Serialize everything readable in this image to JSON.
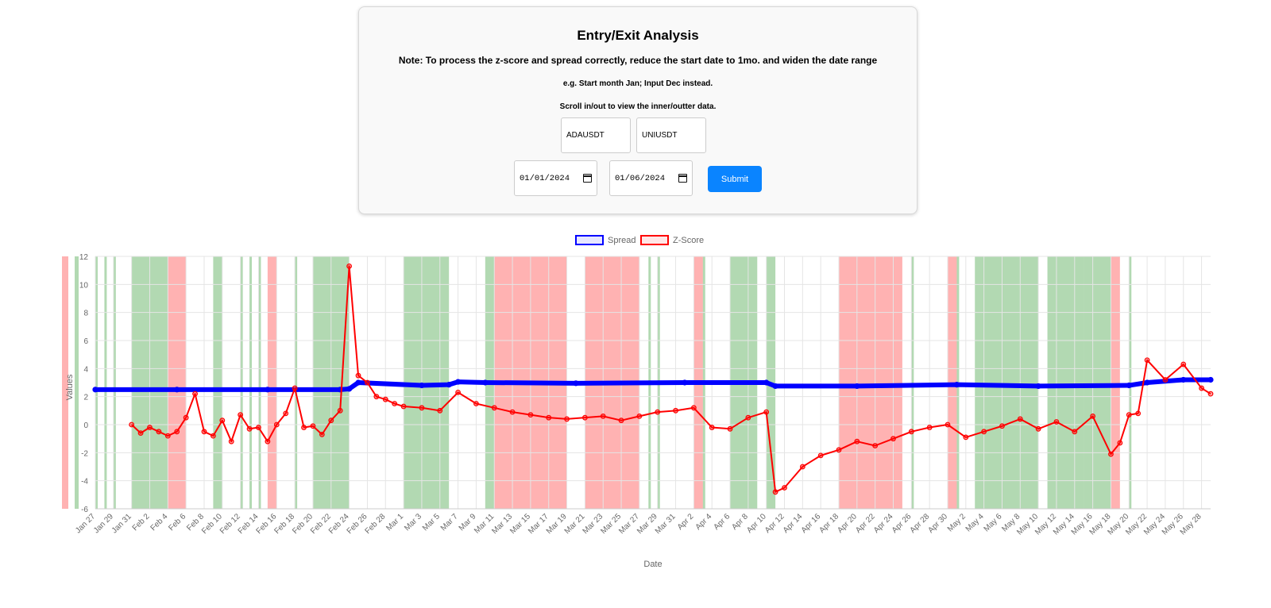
{
  "form": {
    "title": "Entry/Exit Analysis",
    "note": "Note: To process the z-score and spread correctly, reduce the start date to 1mo. and widen the date range",
    "example": "e.g. Start month Jan; Input Dec instead.",
    "scroll_hint": "Scroll in/out to view the inner/outter data.",
    "symbol1": "ADAUSDT",
    "symbol2": "UNIUSDT",
    "start_date": "01/01/2024",
    "end_date": "01/06/2024",
    "submit_label": "Submit",
    "submit_color": "#0a84ff"
  },
  "chart_data": {
    "type": "line",
    "xlabel": "Date",
    "ylabel": "Values",
    "ylim": [
      -6,
      12
    ],
    "yticks": [
      -6,
      -4,
      -2,
      0,
      2,
      4,
      6,
      8,
      10,
      12
    ],
    "xlim": [
      "2024-01-27",
      "2024-05-29"
    ],
    "xtick_labels": [
      "Jan 27",
      "Jan 29",
      "Jan 31",
      "Feb 2",
      "Feb 4",
      "Feb 6",
      "Feb 8",
      "Feb 10",
      "Feb 12",
      "Feb 14",
      "Feb 16",
      "Feb 18",
      "Feb 20",
      "Feb 22",
      "Feb 24",
      "Feb 26",
      "Feb 28",
      "Mar 1",
      "Mar 3",
      "Mar 5",
      "Mar 7",
      "Mar 9",
      "Mar 11",
      "Mar 13",
      "Mar 15",
      "Mar 17",
      "Mar 19",
      "Mar 21",
      "Mar 23",
      "Mar 25",
      "Mar 27",
      "Mar 29",
      "Mar 31",
      "Apr 2",
      "Apr 4",
      "Apr 6",
      "Apr 8",
      "Apr 10",
      "Apr 12",
      "Apr 14",
      "Apr 16",
      "Apr 18",
      "Apr 20",
      "Apr 22",
      "Apr 24",
      "Apr 26",
      "Apr 28",
      "Apr 30",
      "May 2",
      "May 4",
      "May 6",
      "May 8",
      "May 10",
      "May 12",
      "May 14",
      "May 16",
      "May 18",
      "May 20",
      "May 22",
      "May 24",
      "May 26",
      "May 28"
    ],
    "grid": true,
    "legend_position": "top",
    "series": [
      {
        "name": "Spread",
        "color": "#0000ff",
        "x": [
          "2024-01-27",
          "2024-02-05",
          "2024-02-15",
          "2024-02-23",
          "2024-02-24",
          "2024-02-25",
          "2024-03-03",
          "2024-03-06",
          "2024-03-07",
          "2024-03-10",
          "2024-03-20",
          "2024-04-01",
          "2024-04-10",
          "2024-04-11",
          "2024-04-20",
          "2024-05-01",
          "2024-05-10",
          "2024-05-20",
          "2024-05-22",
          "2024-05-26",
          "2024-05-29"
        ],
        "y": [
          2.5,
          2.5,
          2.5,
          2.5,
          2.55,
          3.0,
          2.8,
          2.85,
          3.05,
          3.0,
          2.95,
          3.0,
          3.0,
          2.75,
          2.75,
          2.85,
          2.75,
          2.8,
          3.0,
          3.2,
          3.2
        ]
      },
      {
        "name": "Z-Score",
        "color": "#ff0000",
        "x": [
          "2024-01-31",
          "2024-02-01",
          "2024-02-02",
          "2024-02-03",
          "2024-02-04",
          "2024-02-05",
          "2024-02-06",
          "2024-02-07",
          "2024-02-08",
          "2024-02-09",
          "2024-02-10",
          "2024-02-11",
          "2024-02-12",
          "2024-02-13",
          "2024-02-14",
          "2024-02-15",
          "2024-02-16",
          "2024-02-17",
          "2024-02-18",
          "2024-02-19",
          "2024-02-20",
          "2024-02-21",
          "2024-02-22",
          "2024-02-23",
          "2024-02-24",
          "2024-02-25",
          "2024-02-26",
          "2024-02-27",
          "2024-02-28",
          "2024-02-29",
          "2024-03-01",
          "2024-03-03",
          "2024-03-05",
          "2024-03-07",
          "2024-03-09",
          "2024-03-11",
          "2024-03-13",
          "2024-03-15",
          "2024-03-17",
          "2024-03-19",
          "2024-03-21",
          "2024-03-23",
          "2024-03-25",
          "2024-03-27",
          "2024-03-29",
          "2024-03-31",
          "2024-04-02",
          "2024-04-04",
          "2024-04-06",
          "2024-04-08",
          "2024-04-10",
          "2024-04-11",
          "2024-04-12",
          "2024-04-14",
          "2024-04-16",
          "2024-04-18",
          "2024-04-20",
          "2024-04-22",
          "2024-04-24",
          "2024-04-26",
          "2024-04-28",
          "2024-04-30",
          "2024-05-02",
          "2024-05-04",
          "2024-05-06",
          "2024-05-08",
          "2024-05-10",
          "2024-05-12",
          "2024-05-14",
          "2024-05-16",
          "2024-05-18",
          "2024-05-19",
          "2024-05-20",
          "2024-05-21",
          "2024-05-22",
          "2024-05-24",
          "2024-05-26",
          "2024-05-28",
          "2024-05-29"
        ],
        "y": [
          0.0,
          -0.6,
          -0.2,
          -0.5,
          -0.8,
          -0.5,
          0.5,
          2.2,
          -0.5,
          -0.8,
          0.3,
          -1.2,
          0.7,
          -0.3,
          -0.2,
          -1.2,
          0.0,
          0.8,
          2.6,
          -0.2,
          -0.1,
          -0.7,
          0.3,
          1.0,
          11.3,
          3.5,
          3.0,
          2.0,
          1.8,
          1.5,
          1.3,
          1.2,
          1.0,
          2.3,
          1.5,
          1.2,
          0.9,
          0.7,
          0.5,
          0.4,
          0.5,
          0.6,
          0.3,
          0.6,
          0.9,
          1.0,
          1.2,
          -0.2,
          -0.3,
          0.5,
          0.9,
          -4.8,
          -4.5,
          -3.0,
          -2.2,
          -1.8,
          -1.2,
          -1.5,
          -1.0,
          -0.5,
          -0.2,
          0.0,
          -0.9,
          -0.5,
          -0.1,
          0.4,
          -0.3,
          0.2,
          -0.5,
          0.6,
          -2.1,
          -1.3,
          0.7,
          0.8,
          4.6,
          3.2,
          4.3,
          2.6,
          2.2
        ]
      }
    ],
    "green_bands": [
      [
        "2024-01-27",
        "2024-01-27"
      ],
      [
        "2024-01-28",
        "2024-01-28"
      ],
      [
        "2024-01-29",
        "2024-01-29"
      ],
      [
        "2024-01-31",
        "2024-02-04"
      ],
      [
        "2024-02-09",
        "2024-02-10"
      ],
      [
        "2024-02-12",
        "2024-02-12"
      ],
      [
        "2024-02-13",
        "2024-02-13"
      ],
      [
        "2024-02-14",
        "2024-02-14"
      ],
      [
        "2024-02-18",
        "2024-02-18"
      ],
      [
        "2024-02-20",
        "2024-02-24"
      ],
      [
        "2024-03-01",
        "2024-03-06"
      ],
      [
        "2024-03-10",
        "2024-03-11"
      ],
      [
        "2024-03-28",
        "2024-03-28"
      ],
      [
        "2024-03-29",
        "2024-03-29"
      ],
      [
        "2024-04-03",
        "2024-04-03"
      ],
      [
        "2024-04-06",
        "2024-04-09"
      ],
      [
        "2024-04-10",
        "2024-04-11"
      ],
      [
        "2024-04-26",
        "2024-04-26"
      ],
      [
        "2024-05-01",
        "2024-05-01"
      ],
      [
        "2024-05-03",
        "2024-05-10"
      ],
      [
        "2024-05-11",
        "2024-05-15"
      ],
      [
        "2024-05-15",
        "2024-05-18"
      ],
      [
        "2024-05-20",
        "2024-05-20"
      ]
    ],
    "red_bands": [
      [
        "2024-02-04",
        "2024-02-06"
      ],
      [
        "2024-02-15",
        "2024-02-16"
      ],
      [
        "2024-03-11",
        "2024-03-19"
      ],
      [
        "2024-03-21",
        "2024-03-27"
      ],
      [
        "2024-04-02",
        "2024-04-03"
      ],
      [
        "2024-04-18",
        "2024-04-25"
      ],
      [
        "2024-04-30",
        "2024-05-01"
      ],
      [
        "2024-05-18",
        "2024-05-19"
      ]
    ]
  }
}
